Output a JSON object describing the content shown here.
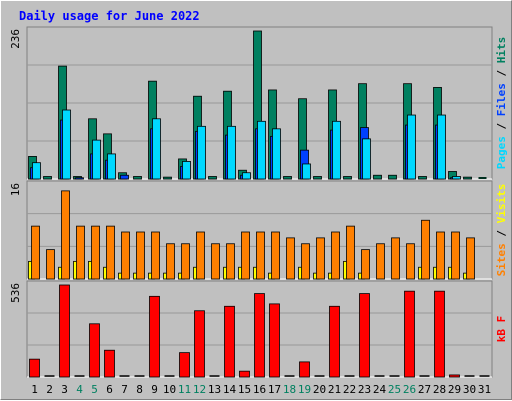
{
  "title": "Daily usage for June 2022",
  "colors": {
    "pages": "#00d8ff",
    "files": "#0040ff",
    "hits": "#008060",
    "sites": "#ff8000",
    "visits": "#ffff00",
    "kbytes": "#ff0000",
    "weekend_day": "#008060",
    "weekday": "#000000",
    "separator": "#666666",
    "panel_bg": "#c0c0c0"
  },
  "right_labels": {
    "top": [
      {
        "text": "Pages",
        "color": "#00d8ff"
      },
      {
        "text": " / ",
        "color": "#000000"
      },
      {
        "text": "Files",
        "color": "#0040ff"
      },
      {
        "text": " / ",
        "color": "#000000"
      },
      {
        "text": "Hits",
        "color": "#008060"
      }
    ],
    "middle": [
      {
        "text": "Sites",
        "color": "#ff8000"
      },
      {
        "text": " / ",
        "color": "#000000"
      },
      {
        "text": "Visits",
        "color": "#ffff00"
      }
    ],
    "bottom": [
      {
        "text": "kB F",
        "color": "#ff0000"
      }
    ]
  },
  "chart_data": {
    "type": "bar",
    "title": "Daily usage for June 2022",
    "categories": [
      "1",
      "2",
      "3",
      "4",
      "5",
      "6",
      "7",
      "8",
      "9",
      "10",
      "11",
      "12",
      "13",
      "14",
      "15",
      "16",
      "17",
      "18",
      "19",
      "20",
      "21",
      "22",
      "23",
      "24",
      "25",
      "26",
      "27",
      "28",
      "29",
      "30",
      "31"
    ],
    "weekend_days": [
      "4",
      "5",
      "11",
      "12",
      "18",
      "19",
      "25",
      "26"
    ],
    "panels": [
      {
        "name": "hits-files-pages",
        "ymax_label": "236",
        "ymax": 236,
        "series": [
          {
            "name": "Hits",
            "values": [
              36,
              4,
              180,
              4,
              96,
              72,
              10,
              4,
              156,
              3,
              32,
              132,
              4,
              140,
              14,
              236,
              142,
              4,
              128,
              4,
              142,
              4,
              152,
              6,
              6,
              152,
              4,
              146,
              12,
              3,
              0
            ]
          },
          {
            "name": "Files",
            "values": [
              18,
              0,
              94,
              2,
              40,
              30,
              6,
              0,
              80,
              0,
              20,
              76,
              0,
              70,
              6,
              80,
              68,
              0,
              46,
              0,
              78,
              0,
              82,
              0,
              0,
              86,
              0,
              86,
              2,
              0,
              0
            ]
          },
          {
            "name": "Pages",
            "values": [
              26,
              0,
              110,
              0,
              62,
              40,
              0,
              0,
              96,
              0,
              28,
              84,
              0,
              84,
              10,
              92,
              80,
              0,
              24,
              0,
              92,
              0,
              64,
              0,
              0,
              102,
              0,
              102,
              4,
              0,
              0
            ]
          }
        ]
      },
      {
        "name": "visits-sites",
        "ymax_label": "16",
        "ymax": 16,
        "series": [
          {
            "name": "Visits",
            "values": [
              3,
              0,
              2,
              3,
              3,
              2,
              1,
              1,
              1,
              1,
              1,
              2,
              0,
              2,
              2,
              2,
              1,
              0,
              2,
              1,
              1,
              3,
              1,
              0,
              0,
              0,
              2,
              2,
              2,
              1,
              0
            ]
          },
          {
            "name": "Sites",
            "values": [
              9,
              5,
              15,
              9,
              9,
              9,
              8,
              8,
              8,
              6,
              6,
              8,
              6,
              6,
              8,
              8,
              8,
              7,
              6,
              7,
              8,
              9,
              5,
              6,
              7,
              6,
              10,
              8,
              8,
              7,
              0
            ]
          }
        ]
      },
      {
        "name": "kbytes",
        "ymax_label": "536",
        "ymax": 536,
        "series": [
          {
            "name": "kB F",
            "values": [
              104,
              0,
              536,
              0,
              310,
              156,
              0,
              0,
              470,
              0,
              142,
              386,
              0,
              412,
              34,
              486,
              426,
              0,
              88,
              0,
              412,
              0,
              486,
              0,
              0,
              500,
              0,
              500,
              12,
              0,
              0
            ]
          }
        ]
      }
    ]
  }
}
